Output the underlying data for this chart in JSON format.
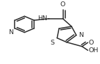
{
  "bg_color": "#ffffff",
  "bond_color": "#2a2a2a",
  "text_color": "#2a2a2a",
  "fig_width": 1.44,
  "fig_height": 0.92,
  "dpi": 100,
  "font_size": 6.8,
  "line_width": 1.1,
  "xlim": [
    0.0,
    1.0
  ],
  "ylim": [
    0.05,
    0.95
  ]
}
